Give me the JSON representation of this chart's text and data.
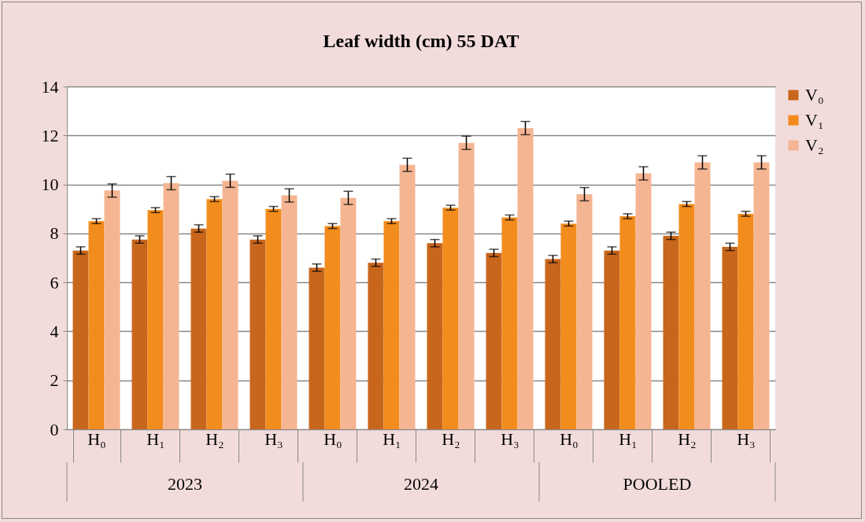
{
  "chart_data": {
    "type": "bar",
    "title": "Leaf width (cm) 55 DAT",
    "categories": [
      "H₀",
      "H₁",
      "H₂",
      "H₃",
      "H₀",
      "H₁",
      "H₂",
      "H₃",
      "H₀",
      "H₁",
      "H₂",
      "H₃"
    ],
    "annotations": [
      "2023",
      "2024",
      "POOLED"
    ],
    "series": [
      {
        "name": "V₀",
        "color": "#c8661c",
        "values": [
          7.3,
          7.75,
          8.2,
          7.75,
          6.6,
          6.8,
          7.6,
          7.2,
          6.95,
          7.3,
          7.9,
          7.45
        ],
        "errors": [
          0.15,
          0.15,
          0.15,
          0.15,
          0.15,
          0.15,
          0.15,
          0.15,
          0.15,
          0.15,
          0.15,
          0.15
        ]
      },
      {
        "name": "V₁",
        "color": "#f28c1c",
        "values": [
          8.5,
          8.95,
          9.4,
          9.0,
          8.3,
          8.5,
          9.05,
          8.65,
          8.4,
          8.7,
          9.2,
          8.8
        ],
        "errors": [
          0.1,
          0.1,
          0.1,
          0.1,
          0.1,
          0.1,
          0.1,
          0.1,
          0.1,
          0.1,
          0.1,
          0.1
        ]
      },
      {
        "name": "V₂",
        "color": "#f5b592",
        "values": [
          9.75,
          10.05,
          10.15,
          9.55,
          9.45,
          10.8,
          11.7,
          12.3,
          9.6,
          10.45,
          10.9,
          10.9
        ],
        "errors": [
          0.27,
          0.27,
          0.27,
          0.27,
          0.27,
          0.27,
          0.27,
          0.27,
          0.27,
          0.27,
          0.27,
          0.27
        ]
      }
    ],
    "ylim": [
      0,
      14
    ],
    "yticks": [
      0,
      2,
      4,
      6,
      8,
      10,
      12,
      14
    ],
    "grid": "y",
    "legend": "right"
  }
}
